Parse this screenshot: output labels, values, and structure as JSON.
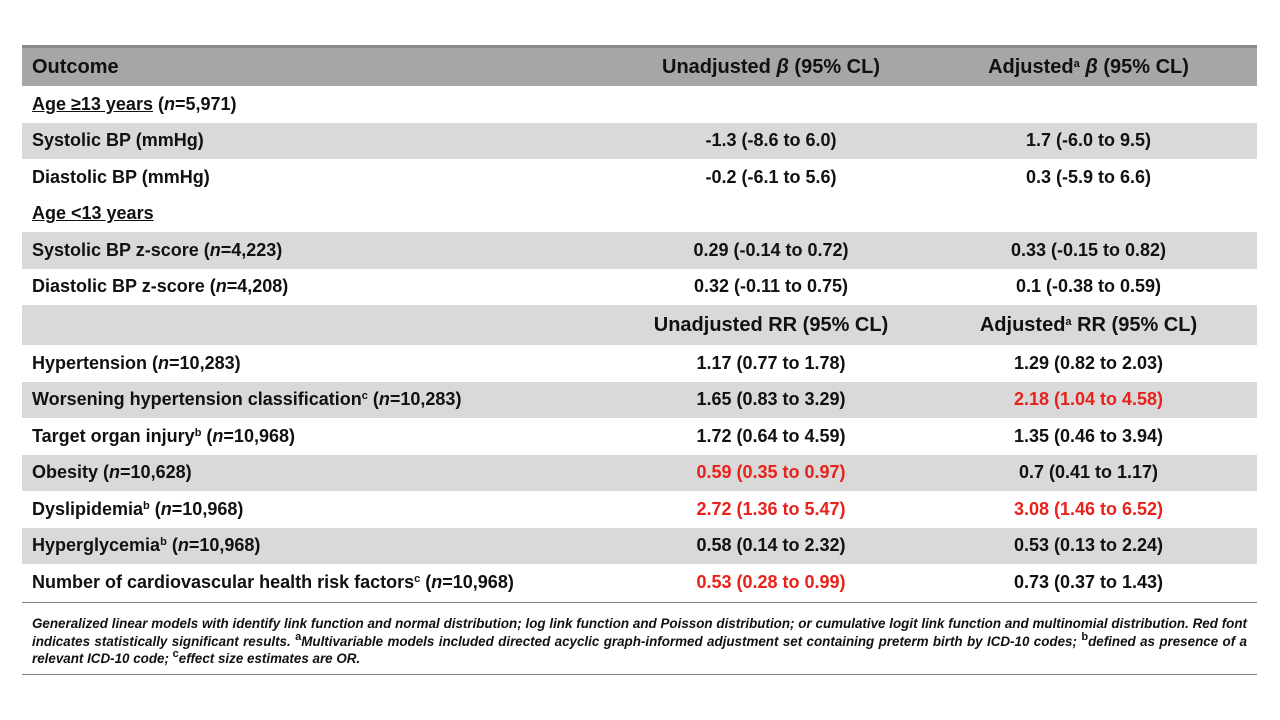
{
  "header": {
    "outcome": "Outcome",
    "unadj_beta_pre": "Unadjusted ",
    "beta": "β",
    "unadj_beta_post": " (95% CL)",
    "adj_beta_pre": "Adjusted",
    "sup_a": "a",
    "adj_beta_post": " (95% CL)"
  },
  "section1": {
    "label": "Age ≥13 years",
    "n_prefix": " (",
    "n": "n",
    "n_suffix": "=5,971)"
  },
  "rows1": [
    {
      "outcome": "Systolic BP (mmHg)",
      "unadjusted": "-1.3 (-8.6 to 6.0)",
      "adjusted": "1.7 (-6.0 to 9.5)"
    },
    {
      "outcome": "Diastolic BP (mmHg)",
      "unadjusted": "-0.2 (-6.1 to 5.6)",
      "adjusted": "0.3 (-5.9 to 6.6)"
    }
  ],
  "section2": {
    "label": "Age <13 years"
  },
  "rows2": [
    {
      "outcome": "Systolic BP z-score (",
      "n": "n",
      "n_val": "=4,223)",
      "unadjusted": "0.29 (-0.14 to 0.72)",
      "adjusted": "0.33 (-0.15 to 0.82)"
    },
    {
      "outcome": "Diastolic BP z-score (",
      "n": "n",
      "n_val": "=4,208)",
      "unadjusted": "0.32 (-0.11 to 0.75)",
      "adjusted": "0.1 (-0.38 to 0.59)"
    }
  ],
  "header2": {
    "unadj_rr": "Unadjusted RR (95% CL)",
    "adj_rr_pre": "Adjusted",
    "sup_a": "a",
    "adj_rr_post": " RR (95% CL)"
  },
  "rows3": [
    {
      "outcome": "Hypertension",
      "sup": "",
      "paren": " (",
      "n": "n",
      "n_val": "=10,283)",
      "unadjusted": "1.17 (0.77 to 1.78)",
      "adjusted": "1.29 (0.82 to 2.03)"
    },
    {
      "outcome": "Worsening hypertension classification",
      "sup": "c",
      "paren": " (",
      "n": "n",
      "n_val": "=10,283)",
      "unadjusted": "1.65 (0.83 to 3.29)",
      "adjusted": "2.18 (1.04 to 4.58)"
    },
    {
      "outcome": "Target organ injury",
      "sup": "b",
      "paren": " (",
      "n": "n",
      "n_val": "=10,968)",
      "unadjusted": "1.72 (0.64 to 4.59)",
      "adjusted": "1.35 (0.46 to 3.94)"
    },
    {
      "outcome": "Obesity",
      "sup": "",
      "paren": " (",
      "n": "n",
      "n_val": "=10,628)",
      "unadjusted": "0.59 (0.35 to 0.97)",
      "adjusted": "0.7 (0.41 to 1.17)"
    },
    {
      "outcome": "Dyslipidemia",
      "sup": "b",
      "paren": " (",
      "n": "n",
      "n_val": "=10,968)",
      "unadjusted": "2.72 (1.36 to 5.47)",
      "adjusted": "3.08 (1.46 to 6.52)"
    },
    {
      "outcome": "Hyperglycemia",
      "sup": "b",
      "paren": " (",
      "n": "n",
      "n_val": "=10,968)",
      "unadjusted": "0.58 (0.14 to 2.32)",
      "adjusted": "0.53 (0.13 to 2.24)"
    },
    {
      "outcome": "Number of cardiovascular health risk factors",
      "sup": "c",
      "paren": " (",
      "n": "n",
      "n_val": "=10,968)",
      "unadjusted": "0.53 (0.28 to 0.99)",
      "adjusted": "0.73 (0.37 to 1.43)"
    }
  ],
  "footnote": {
    "part1": "Generalized linear models with identify link function and normal distribution; log link function and Poisson distribution; or cumulative logit link function and multinomial distribution. Red font indicates statistically significant results. ",
    "sup_a": "a",
    "part2": "Multivariable models included directed acyclic graph-informed adjustment set containing preterm birth by ICD-10 codes; ",
    "sup_b": "b",
    "part3": "defined as presence of a relevant ICD-10 code; ",
    "sup_c": "c",
    "part4": "effect size estimates are OR."
  },
  "colors": {
    "significant": "#e8211b",
    "header_bg": "#a6a6a6",
    "shade_bg": "#d9d9d9"
  }
}
